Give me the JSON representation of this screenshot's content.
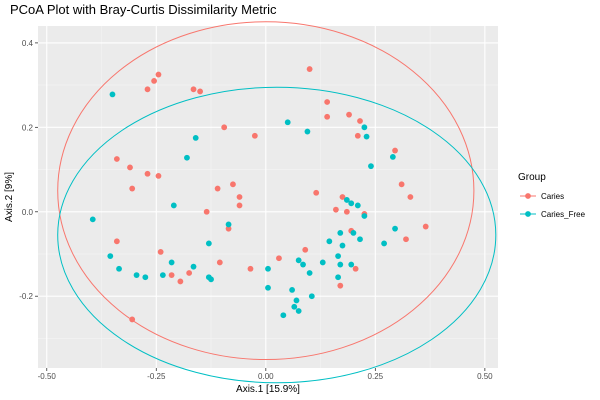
{
  "chart_data": {
    "type": "scatter",
    "title": "PCoA Plot with Bray-Curtis Dissimilarity Metric",
    "xlabel": "Axis.1   [15.9%]",
    "ylabel": "Axis.2   [9%]",
    "xlim": [
      -0.52,
      0.53
    ],
    "ylim": [
      -0.37,
      0.44
    ],
    "x_ticks": [
      -0.5,
      -0.25,
      0.0,
      0.25,
      0.5
    ],
    "x_tick_labels": [
      "-0.50",
      "-0.25",
      "0.00",
      "0.25",
      "0.50"
    ],
    "y_ticks": [
      -0.2,
      0.0,
      0.2,
      0.4
    ],
    "y_tick_labels": [
      "-0.2",
      "0.0",
      "0.2",
      "0.4"
    ],
    "grid": true,
    "legend": {
      "title": "Group",
      "position": "right",
      "entries": [
        "Caries",
        "Caries_Free"
      ]
    },
    "colors": {
      "Caries": "#F8766D",
      "Caries_Free": "#00BFC4"
    },
    "series": [
      {
        "name": "Caries",
        "points": [
          [
            -0.245,
            0.325
          ],
          [
            -0.255,
            0.31
          ],
          [
            -0.27,
            0.29
          ],
          [
            -0.165,
            0.29
          ],
          [
            -0.15,
            0.285
          ],
          [
            -0.095,
            0.2
          ],
          [
            -0.025,
            0.18
          ],
          [
            -0.34,
            0.125
          ],
          [
            -0.31,
            0.105
          ],
          [
            -0.27,
            0.09
          ],
          [
            -0.245,
            0.085
          ],
          [
            -0.305,
            0.055
          ],
          [
            -0.11,
            0.055
          ],
          [
            -0.075,
            0.065
          ],
          [
            -0.06,
            0.035
          ],
          [
            -0.06,
            0.015
          ],
          [
            0.1,
            0.338
          ],
          [
            0.14,
            0.26
          ],
          [
            0.14,
            0.225
          ],
          [
            0.19,
            0.23
          ],
          [
            0.215,
            0.215
          ],
          [
            0.21,
            0.18
          ],
          [
            0.295,
            0.145
          ],
          [
            0.31,
            0.065
          ],
          [
            0.33,
            0.035
          ],
          [
            0.115,
            0.045
          ],
          [
            0.16,
            0.005
          ],
          [
            0.175,
            0.035
          ],
          [
            0.185,
            0.0
          ],
          [
            0.195,
            -0.045
          ],
          [
            0.225,
            -0.005
          ],
          [
            0.365,
            -0.035
          ],
          [
            0.32,
            -0.065
          ],
          [
            0.205,
            -0.135
          ],
          [
            -0.135,
            0.0
          ],
          [
            -0.34,
            -0.07
          ],
          [
            -0.24,
            -0.095
          ],
          [
            -0.105,
            -0.12
          ],
          [
            0.03,
            -0.11
          ],
          [
            -0.215,
            -0.15
          ],
          [
            -0.195,
            -0.165
          ],
          [
            -0.175,
            -0.145
          ],
          [
            -0.305,
            -0.255
          ],
          [
            -0.035,
            -0.135
          ],
          [
            0.17,
            -0.175
          ],
          [
            -0.085,
            -0.04
          ],
          [
            0.09,
            -0.09
          ]
        ]
      },
      {
        "name": "Caries_Free",
        "points": [
          [
            -0.35,
            0.278
          ],
          [
            -0.16,
            0.175
          ],
          [
            -0.18,
            0.128
          ],
          [
            0.05,
            0.212
          ],
          [
            0.095,
            0.19
          ],
          [
            0.23,
            0.178
          ],
          [
            0.225,
            0.2
          ],
          [
            0.24,
            0.108
          ],
          [
            0.29,
            0.13
          ],
          [
            -0.21,
            0.015
          ],
          [
            -0.395,
            -0.018
          ],
          [
            -0.085,
            -0.03
          ],
          [
            0.195,
            0.02
          ],
          [
            0.185,
            0.028
          ],
          [
            0.21,
            0.015
          ],
          [
            0.225,
            -0.01
          ],
          [
            0.17,
            -0.05
          ],
          [
            0.2,
            -0.05
          ],
          [
            0.215,
            -0.065
          ],
          [
            0.295,
            -0.04
          ],
          [
            0.27,
            -0.075
          ],
          [
            -0.13,
            -0.075
          ],
          [
            0.145,
            -0.07
          ],
          [
            0.175,
            -0.08
          ],
          [
            0.165,
            -0.105
          ],
          [
            0.17,
            -0.125
          ],
          [
            0.195,
            -0.125
          ],
          [
            0.075,
            -0.115
          ],
          [
            0.085,
            -0.125
          ],
          [
            0.13,
            -0.12
          ],
          [
            0.165,
            -0.155
          ],
          [
            0.1,
            -0.145
          ],
          [
            -0.335,
            -0.135
          ],
          [
            -0.295,
            -0.15
          ],
          [
            -0.275,
            -0.155
          ],
          [
            -0.235,
            -0.15
          ],
          [
            -0.215,
            -0.12
          ],
          [
            -0.165,
            -0.13
          ],
          [
            -0.13,
            -0.155
          ],
          [
            -0.125,
            -0.16
          ],
          [
            0.005,
            -0.135
          ],
          [
            0.005,
            -0.18
          ],
          [
            0.06,
            -0.185
          ],
          [
            0.07,
            -0.21
          ],
          [
            0.065,
            -0.225
          ],
          [
            0.105,
            -0.2
          ],
          [
            0.075,
            -0.235
          ],
          [
            0.04,
            -0.245
          ],
          [
            -0.355,
            -0.105
          ]
        ]
      }
    ],
    "ellipses": [
      {
        "series": "Caries",
        "cx": 0.0,
        "cy": 0.05,
        "rx": 0.475,
        "ry": 0.4
      },
      {
        "series": "Caries_Free",
        "cx": 0.025,
        "cy": -0.055,
        "rx": 0.5,
        "ry": 0.35
      }
    ]
  }
}
